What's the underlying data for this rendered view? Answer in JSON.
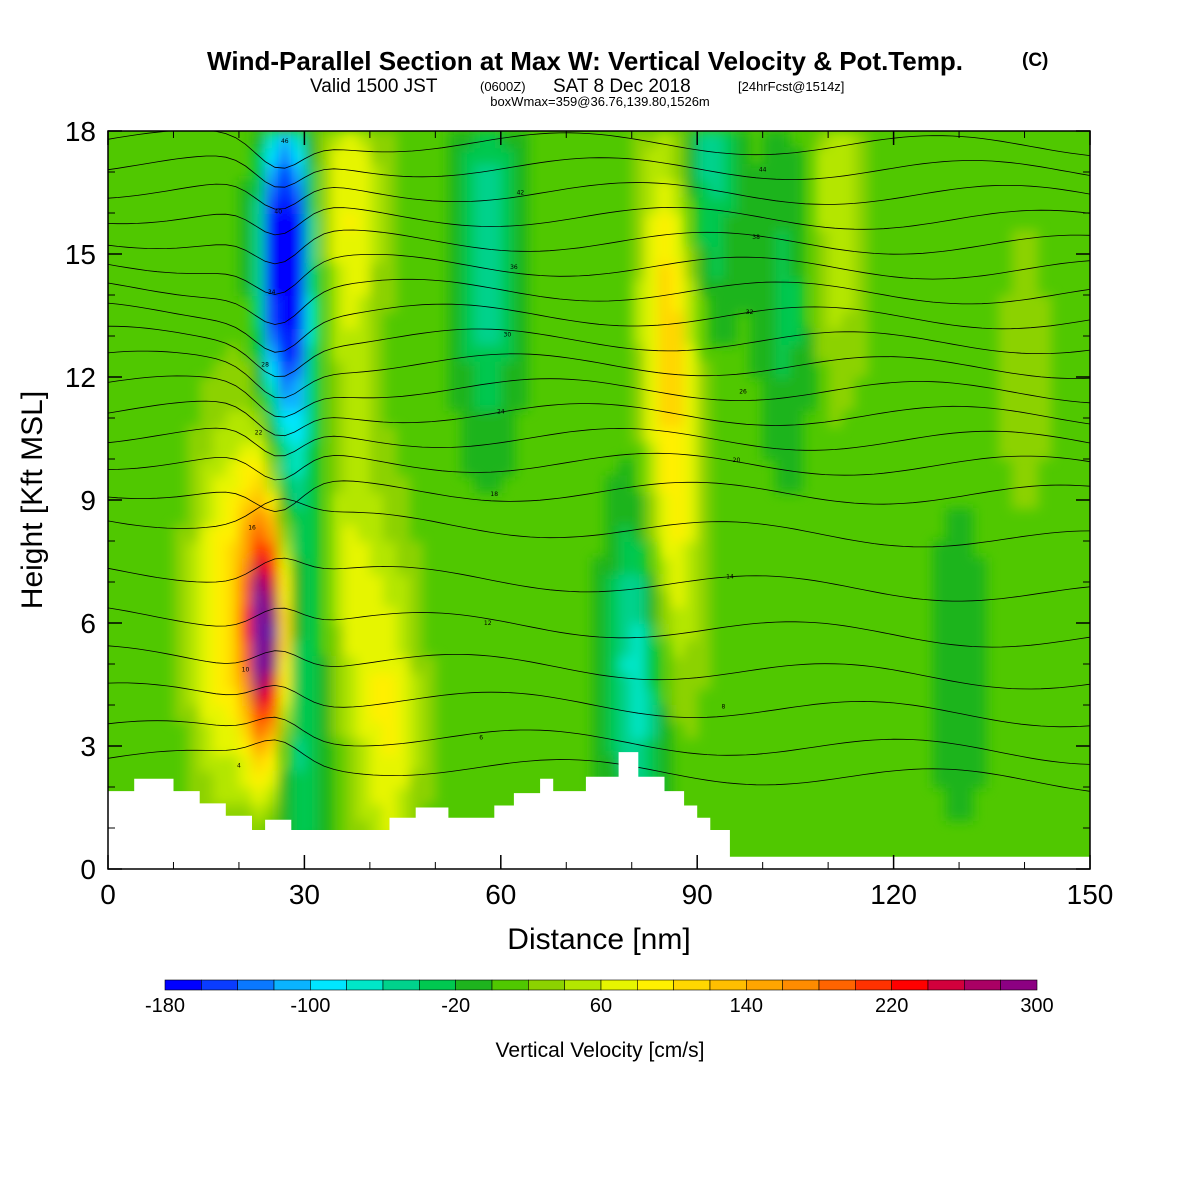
{
  "title": {
    "main": "Wind-Parallel Section at Max W: Vertical Velocity & Pot.Temp.",
    "main_mark": "(C)",
    "valid_prefix": "Valid 1500 JST",
    "valid_utc": "(0600Z)",
    "valid_date": "SAT 8 Dec 2018",
    "forecast": "[24hrFcst@1514z]",
    "box_info": "boxWmax=359@36.76,139.80,1526m"
  },
  "chart_data": {
    "type": "heatmap",
    "xlabel": "Distance [nm]",
    "ylabel": "Height [Kft MSL]",
    "xlim": [
      0,
      150
    ],
    "ylim": [
      0,
      18
    ],
    "x_ticks": [
      "0",
      "30",
      "60",
      "90",
      "120",
      "150"
    ],
    "y_ticks": [
      "0",
      "3",
      "6",
      "9",
      "12",
      "15",
      "18"
    ],
    "colorbar": {
      "label": "Vertical Velocity [cm/s]",
      "tick_labels": [
        "-180",
        "-100",
        "-20",
        "60",
        "140",
        "220",
        "300"
      ],
      "levels": [
        -180,
        -160,
        -140,
        -120,
        -100,
        -80,
        -60,
        -40,
        -20,
        0,
        20,
        40,
        60,
        80,
        100,
        120,
        140,
        160,
        180,
        200,
        220,
        240,
        260,
        280,
        300
      ],
      "colors": [
        "#0000ff",
        "#0a3cff",
        "#0a78ff",
        "#0ab4ff",
        "#00e6ff",
        "#00e6c8",
        "#00d28c",
        "#00c850",
        "#1eb41e",
        "#50c800",
        "#8cd200",
        "#b4e600",
        "#e6f500",
        "#fff000",
        "#ffd700",
        "#ffbe00",
        "#ffa500",
        "#ff8c00",
        "#ff6400",
        "#ff3200",
        "#ff0000",
        "#d2003c",
        "#aa0064",
        "#8c0082",
        "#6e14a0"
      ]
    },
    "background_velocity": 10,
    "velocity_features": [
      {
        "x_nm": 24,
        "z_kft": 5.5,
        "w_cm_s": 300
      },
      {
        "x_nm": 24,
        "z_kft": 8.5,
        "w_cm_s": 120
      },
      {
        "x_nm": 17,
        "z_kft": 6,
        "w_cm_s": 90
      },
      {
        "x_nm": 27,
        "z_kft": 15.5,
        "w_cm_s": -180
      },
      {
        "x_nm": 27,
        "z_kft": 12,
        "w_cm_s": -140
      },
      {
        "x_nm": 37,
        "z_kft": 16,
        "w_cm_s": 80
      },
      {
        "x_nm": 37,
        "z_kft": 7,
        "w_cm_s": 60
      },
      {
        "x_nm": 43,
        "z_kft": 3.5,
        "w_cm_s": 80
      },
      {
        "x_nm": 29,
        "z_kft": 4,
        "w_cm_s": -60
      },
      {
        "x_nm": 58,
        "z_kft": 15,
        "w_cm_s": -60
      },
      {
        "x_nm": 86,
        "z_kft": 14,
        "w_cm_s": 110
      },
      {
        "x_nm": 86,
        "z_kft": 8,
        "w_cm_s": 80
      },
      {
        "x_nm": 81,
        "z_kft": 5,
        "w_cm_s": -80
      },
      {
        "x_nm": 91,
        "z_kft": 17,
        "w_cm_s": -60
      },
      {
        "x_nm": 111,
        "z_kft": 16,
        "w_cm_s": 60
      },
      {
        "x_nm": 104,
        "z_kft": 14,
        "w_cm_s": -30
      },
      {
        "x_nm": 130,
        "z_kft": 5,
        "w_cm_s": -15
      },
      {
        "x_nm": 140,
        "z_kft": 12,
        "w_cm_s": 30
      }
    ],
    "terrain": [
      {
        "x": 0,
        "z": 1.9
      },
      {
        "x": 4,
        "z": 1.9
      },
      {
        "x": 4,
        "z": 2.2
      },
      {
        "x": 10,
        "z": 2.2
      },
      {
        "x": 10,
        "z": 1.9
      },
      {
        "x": 14,
        "z": 1.9
      },
      {
        "x": 14,
        "z": 1.6
      },
      {
        "x": 18,
        "z": 1.6
      },
      {
        "x": 18,
        "z": 1.3
      },
      {
        "x": 22,
        "z": 1.3
      },
      {
        "x": 22,
        "z": 0.95
      },
      {
        "x": 24,
        "z": 0.95
      },
      {
        "x": 24,
        "z": 1.2
      },
      {
        "x": 28,
        "z": 1.2
      },
      {
        "x": 28,
        "z": 0.95
      },
      {
        "x": 43,
        "z": 0.95
      },
      {
        "x": 43,
        "z": 1.25
      },
      {
        "x": 47,
        "z": 1.25
      },
      {
        "x": 47,
        "z": 1.5
      },
      {
        "x": 52,
        "z": 1.5
      },
      {
        "x": 52,
        "z": 1.25
      },
      {
        "x": 59,
        "z": 1.25
      },
      {
        "x": 59,
        "z": 1.55
      },
      {
        "x": 62,
        "z": 1.55
      },
      {
        "x": 62,
        "z": 1.85
      },
      {
        "x": 66,
        "z": 1.85
      },
      {
        "x": 66,
        "z": 2.2
      },
      {
        "x": 68,
        "z": 2.2
      },
      {
        "x": 68,
        "z": 1.9
      },
      {
        "x": 73,
        "z": 1.9
      },
      {
        "x": 73,
        "z": 2.25
      },
      {
        "x": 78,
        "z": 2.25
      },
      {
        "x": 78,
        "z": 2.85
      },
      {
        "x": 81,
        "z": 2.85
      },
      {
        "x": 81,
        "z": 2.25
      },
      {
        "x": 85,
        "z": 2.25
      },
      {
        "x": 85,
        "z": 1.9
      },
      {
        "x": 88,
        "z": 1.9
      },
      {
        "x": 88,
        "z": 1.55
      },
      {
        "x": 90,
        "z": 1.55
      },
      {
        "x": 90,
        "z": 1.25
      },
      {
        "x": 92,
        "z": 1.25
      },
      {
        "x": 92,
        "z": 0.95
      },
      {
        "x": 95,
        "z": 0.95
      },
      {
        "x": 95,
        "z": 0.3
      },
      {
        "x": 150,
        "z": 0.3
      }
    ],
    "theta_isentropes": [
      {
        "label": "4",
        "base_kft": 2.4
      },
      {
        "label": "6",
        "base_kft": 3.1
      },
      {
        "label": "8",
        "base_kft": 4.0
      },
      {
        "label": "10",
        "base_kft": 4.9
      },
      {
        "label": "12",
        "base_kft": 5.9
      },
      {
        "label": "14",
        "base_kft": 7.0
      },
      {
        "label": "16",
        "base_kft": 8.3
      },
      {
        "label": "18",
        "base_kft": 9.2
      },
      {
        "label": "20",
        "base_kft": 9.9
      },
      {
        "label": "22",
        "base_kft": 10.5
      },
      {
        "label": "24",
        "base_kft": 11.1
      },
      {
        "label": "26",
        "base_kft": 11.7
      },
      {
        "label": "28",
        "base_kft": 12.3
      },
      {
        "label": "30",
        "base_kft": 12.9
      },
      {
        "label": "32",
        "base_kft": 13.5
      },
      {
        "label": "34",
        "base_kft": 14.1
      },
      {
        "label": "36",
        "base_kft": 14.7
      },
      {
        "label": "38",
        "base_kft": 15.3
      },
      {
        "label": "40",
        "base_kft": 15.9
      },
      {
        "label": "42",
        "base_kft": 16.5
      },
      {
        "label": "44",
        "base_kft": 17.1
      },
      {
        "label": "46",
        "base_kft": 17.7
      }
    ]
  }
}
